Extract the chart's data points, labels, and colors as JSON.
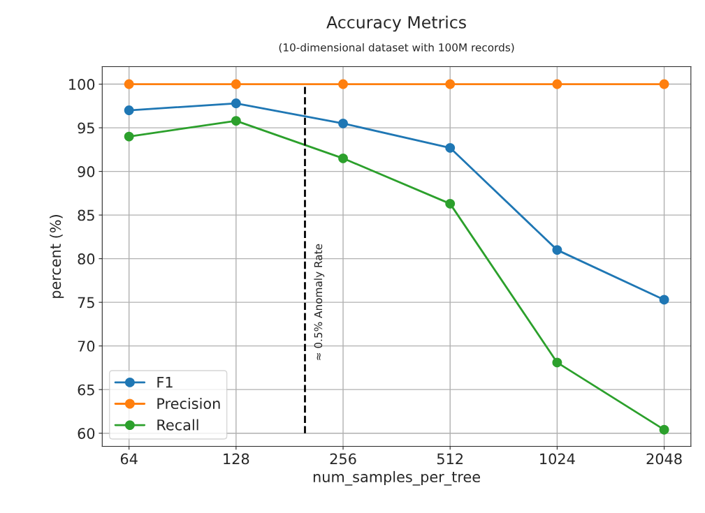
{
  "chart_data": {
    "type": "line",
    "title": "Accuracy Metrics",
    "subtitle": "(10-dimensional dataset with 100M records)",
    "xlabel": "num_samples_per_tree",
    "ylabel": "percent (%)",
    "x": [
      64,
      128,
      256,
      512,
      1024,
      2048
    ],
    "series": [
      {
        "name": "F1",
        "color": "#1f77b4",
        "values": [
          97.0,
          97.8,
          95.5,
          92.7,
          81.0,
          75.3
        ]
      },
      {
        "name": "Precision",
        "color": "#ff7f0e",
        "values": [
          100,
          100,
          100,
          100,
          100,
          100
        ]
      },
      {
        "name": "Recall",
        "color": "#2ca02c",
        "values": [
          94.0,
          95.8,
          91.5,
          86.3,
          68.1,
          60.4
        ]
      }
    ],
    "log": "x",
    "xlim": [
      53.8,
      2435
    ],
    "xticks": [
      64,
      128,
      256,
      512,
      1024,
      2048
    ],
    "ylim": [
      58.5,
      102
    ],
    "yticks": [
      60,
      65,
      70,
      75,
      80,
      85,
      90,
      95,
      100
    ],
    "ref_lines": [
      {
        "axis": "x",
        "value": 200,
        "label": "≈ 0.5% Anomaly Rate",
        "color": "#000000",
        "line_style": "dashed"
      }
    ],
    "grid": true,
    "legend": "bottom left",
    "marker": "circle",
    "line_style": "solid"
  }
}
